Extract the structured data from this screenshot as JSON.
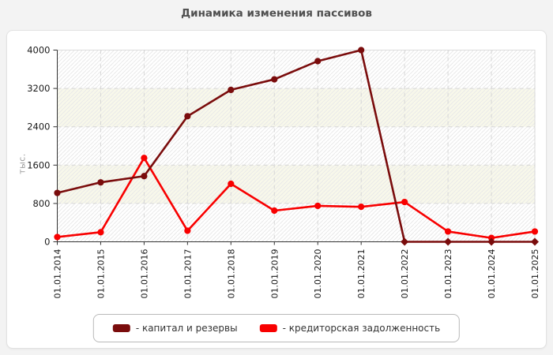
{
  "title": "Динамика изменения пассивов",
  "chart_data": {
    "type": "line",
    "title": "Динамика изменения пассивов",
    "xlabel": "",
    "ylabel": "тыс.",
    "ylim": [
      0,
      4000
    ],
    "yticks": [
      0,
      800,
      1600,
      2400,
      3200,
      4000
    ],
    "grid": true,
    "grid_style": "dashed",
    "legend_position": "bottom-center",
    "categories": [
      "01.01.2014",
      "01.01.2015",
      "01.01.2016",
      "01.01.2017",
      "01.01.2018",
      "01.01.2019",
      "01.01.2020",
      "01.01.2021",
      "01.01.2022",
      "01.01.2023",
      "01.01.2024",
      "01.01.2025"
    ],
    "series": [
      {
        "name": "- капитал и резервы",
        "color": "#7a0c0c",
        "marker": "circle",
        "zero_marker": "diamond",
        "values": [
          1020,
          1240,
          1370,
          2620,
          3170,
          3390,
          3770,
          4000,
          0,
          0,
          0,
          0
        ]
      },
      {
        "name": "- кредиторская задолженность",
        "color": "#f80000",
        "marker": "circle",
        "zero_marker": "circle",
        "values": [
          100,
          200,
          1750,
          230,
          1210,
          650,
          750,
          730,
          830,
          215,
          80,
          215
        ]
      }
    ],
    "colors": {
      "plot_band_even": "#ffffff",
      "plot_band_odd": "#f8f8ea",
      "hatch": "#e9e9e9",
      "gridline": "#d6d6d6",
      "axis": "#333333",
      "tick_label": "#1a1a1a",
      "plot_border": "#dcdcdc"
    }
  }
}
